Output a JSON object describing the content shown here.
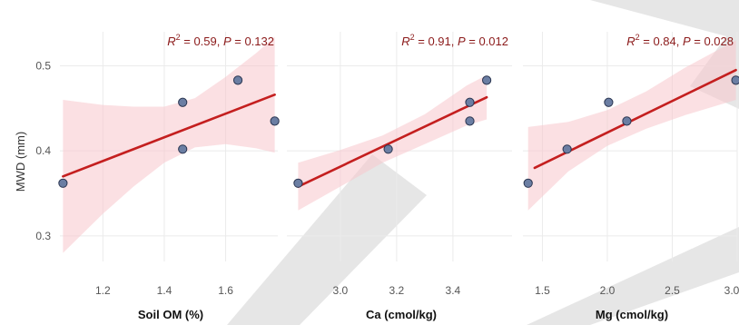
{
  "figure": {
    "ylabel": "MWD (mm)",
    "colors": {
      "fit": "#c41f1f",
      "band": "#f7c6cc",
      "point": "#6b7ea3",
      "annotation": "#8b1a1a"
    }
  },
  "chart_data": [
    {
      "type": "scatter",
      "xlabel": "Soil OM (%)",
      "ylabel": "MWD (mm)",
      "xlim": [
        1.06,
        1.77
      ],
      "ylim": [
        0.27,
        0.54
      ],
      "xticks": [
        "1.2",
        "1.4",
        "1.6"
      ],
      "xtick_values": [
        1.2,
        1.4,
        1.6
      ],
      "yticks": [
        "0.3",
        "0.4",
        "0.5"
      ],
      "ytick_values": [
        0.3,
        0.4,
        0.5
      ],
      "annotation": {
        "r2_label": "R",
        "r2_sup": "2",
        "r2_value": " = 0.59, ",
        "p_label": "P",
        "p_value": " = 0.132"
      },
      "points": [
        {
          "x": 1.07,
          "y": 0.362
        },
        {
          "x": 1.46,
          "y": 0.402
        },
        {
          "x": 1.46,
          "y": 0.457
        },
        {
          "x": 1.64,
          "y": 0.483
        },
        {
          "x": 1.76,
          "y": 0.435
        }
      ],
      "fit": {
        "x": [
          1.07,
          1.76
        ],
        "y": [
          0.37,
          0.466
        ]
      },
      "band": {
        "x": [
          1.07,
          1.2,
          1.3,
          1.4,
          1.5,
          1.6,
          1.7,
          1.76
        ],
        "lower": [
          0.28,
          0.326,
          0.358,
          0.386,
          0.404,
          0.408,
          0.403,
          0.398
        ],
        "upper": [
          0.46,
          0.454,
          0.452,
          0.452,
          0.462,
          0.487,
          0.515,
          0.534
        ]
      },
      "grid": true
    },
    {
      "type": "scatter",
      "xlabel": "Ca (cmol/kg)",
      "ylabel": "",
      "xlim": [
        2.81,
        3.61
      ],
      "ylim": [
        0.27,
        0.54
      ],
      "xticks": [
        "3.0",
        "3.2",
        "3.4"
      ],
      "xtick_values": [
        3.0,
        3.2,
        3.4
      ],
      "yticks": [],
      "ytick_values": [],
      "annotation": {
        "r2_label": "R",
        "r2_sup": "2",
        "r2_value": " = 0.91, ",
        "p_label": "P",
        "p_value": " = 0.012"
      },
      "points": [
        {
          "x": 2.85,
          "y": 0.362
        },
        {
          "x": 3.17,
          "y": 0.402
        },
        {
          "x": 3.46,
          "y": 0.457
        },
        {
          "x": 3.46,
          "y": 0.435
        },
        {
          "x": 3.52,
          "y": 0.483
        }
      ],
      "fit": {
        "x": [
          2.85,
          3.52
        ],
        "y": [
          0.358,
          0.463
        ]
      },
      "band": {
        "x": [
          2.85,
          3.0,
          3.15,
          3.3,
          3.45,
          3.52
        ],
        "lower": [
          0.33,
          0.358,
          0.386,
          0.408,
          0.43,
          0.437
        ],
        "upper": [
          0.386,
          0.401,
          0.418,
          0.443,
          0.477,
          0.489
        ]
      },
      "grid": true
    },
    {
      "type": "scatter",
      "xlabel": "Mg (cmol/kg)",
      "ylabel": "",
      "xlim": [
        1.35,
        3.0
      ],
      "ylim": [
        0.27,
        0.54
      ],
      "xticks": [
        "1.5",
        "2.0",
        "2.5",
        "3.0"
      ],
      "xtick_values": [
        1.5,
        2.0,
        2.5,
        3.0
      ],
      "yticks": [],
      "ytick_values": [],
      "annotation": {
        "r2_label": "R",
        "r2_sup": "2",
        "r2_value": " = 0.84, ",
        "p_label": "P",
        "p_value": " = 0.028"
      },
      "points": [
        {
          "x": 1.39,
          "y": 0.362
        },
        {
          "x": 1.69,
          "y": 0.402
        },
        {
          "x": 2.01,
          "y": 0.457
        },
        {
          "x": 2.15,
          "y": 0.435
        },
        {
          "x": 2.99,
          "y": 0.483
        }
      ],
      "fit": {
        "x": [
          1.44,
          2.99
        ],
        "y": [
          0.38,
          0.495
        ]
      },
      "band": {
        "x": [
          1.39,
          1.7,
          2.0,
          2.3,
          2.6,
          2.99
        ],
        "lower": [
          0.33,
          0.376,
          0.406,
          0.426,
          0.442,
          0.46
        ],
        "upper": [
          0.428,
          0.434,
          0.448,
          0.47,
          0.498,
          0.53
        ]
      },
      "grid": true
    }
  ]
}
